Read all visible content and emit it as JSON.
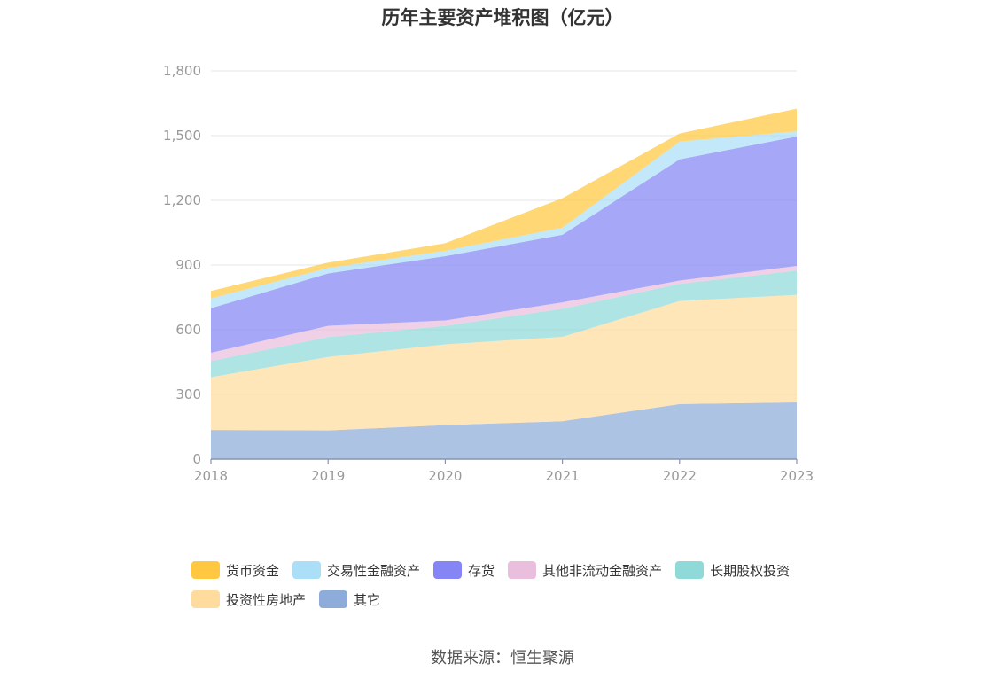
{
  "chart_data": {
    "type": "area",
    "stacked": true,
    "title": "历年主要资产堆积图（亿元）",
    "categories": [
      "2018",
      "2019",
      "2020",
      "2021",
      "2022",
      "2023"
    ],
    "y_ticks": [
      "0",
      "300",
      "600",
      "900",
      "1,200",
      "1,500",
      "1,800"
    ],
    "ylim": [
      0,
      1800
    ],
    "grid": true,
    "legend_position": "bottom",
    "series": [
      {
        "name": "其它",
        "color": "#8EACD9",
        "values": [
          135,
          133,
          158,
          176,
          255,
          263
        ]
      },
      {
        "name": "投资性房地产",
        "color": "#FFDC9E",
        "values": [
          245,
          341,
          374,
          391,
          478,
          499
        ]
      },
      {
        "name": "长期股权投资",
        "color": "#8FD9D9",
        "values": [
          75,
          92,
          86,
          130,
          80,
          112
        ]
      },
      {
        "name": "其他非流动金融资产",
        "color": "#EABEDD",
        "values": [
          38,
          52,
          25,
          30,
          15,
          22
        ]
      },
      {
        "name": "存货",
        "color": "#8585F5",
        "values": [
          207,
          243,
          298,
          313,
          562,
          600
        ]
      },
      {
        "name": "交易性金融资产",
        "color": "#ABDFF8",
        "values": [
          45,
          25,
          25,
          33,
          82,
          24
        ]
      },
      {
        "name": "货币资金",
        "color": "#FFC840",
        "values": [
          35,
          25,
          35,
          137,
          38,
          105
        ]
      }
    ],
    "legend_rows": [
      [
        "货币资金",
        "交易性金融资产",
        "存货",
        "其他非流动金融资产",
        "长期股权投资"
      ],
      [
        "投资性房地产",
        "其它"
      ]
    ]
  },
  "source": "数据来源：恒生聚源"
}
